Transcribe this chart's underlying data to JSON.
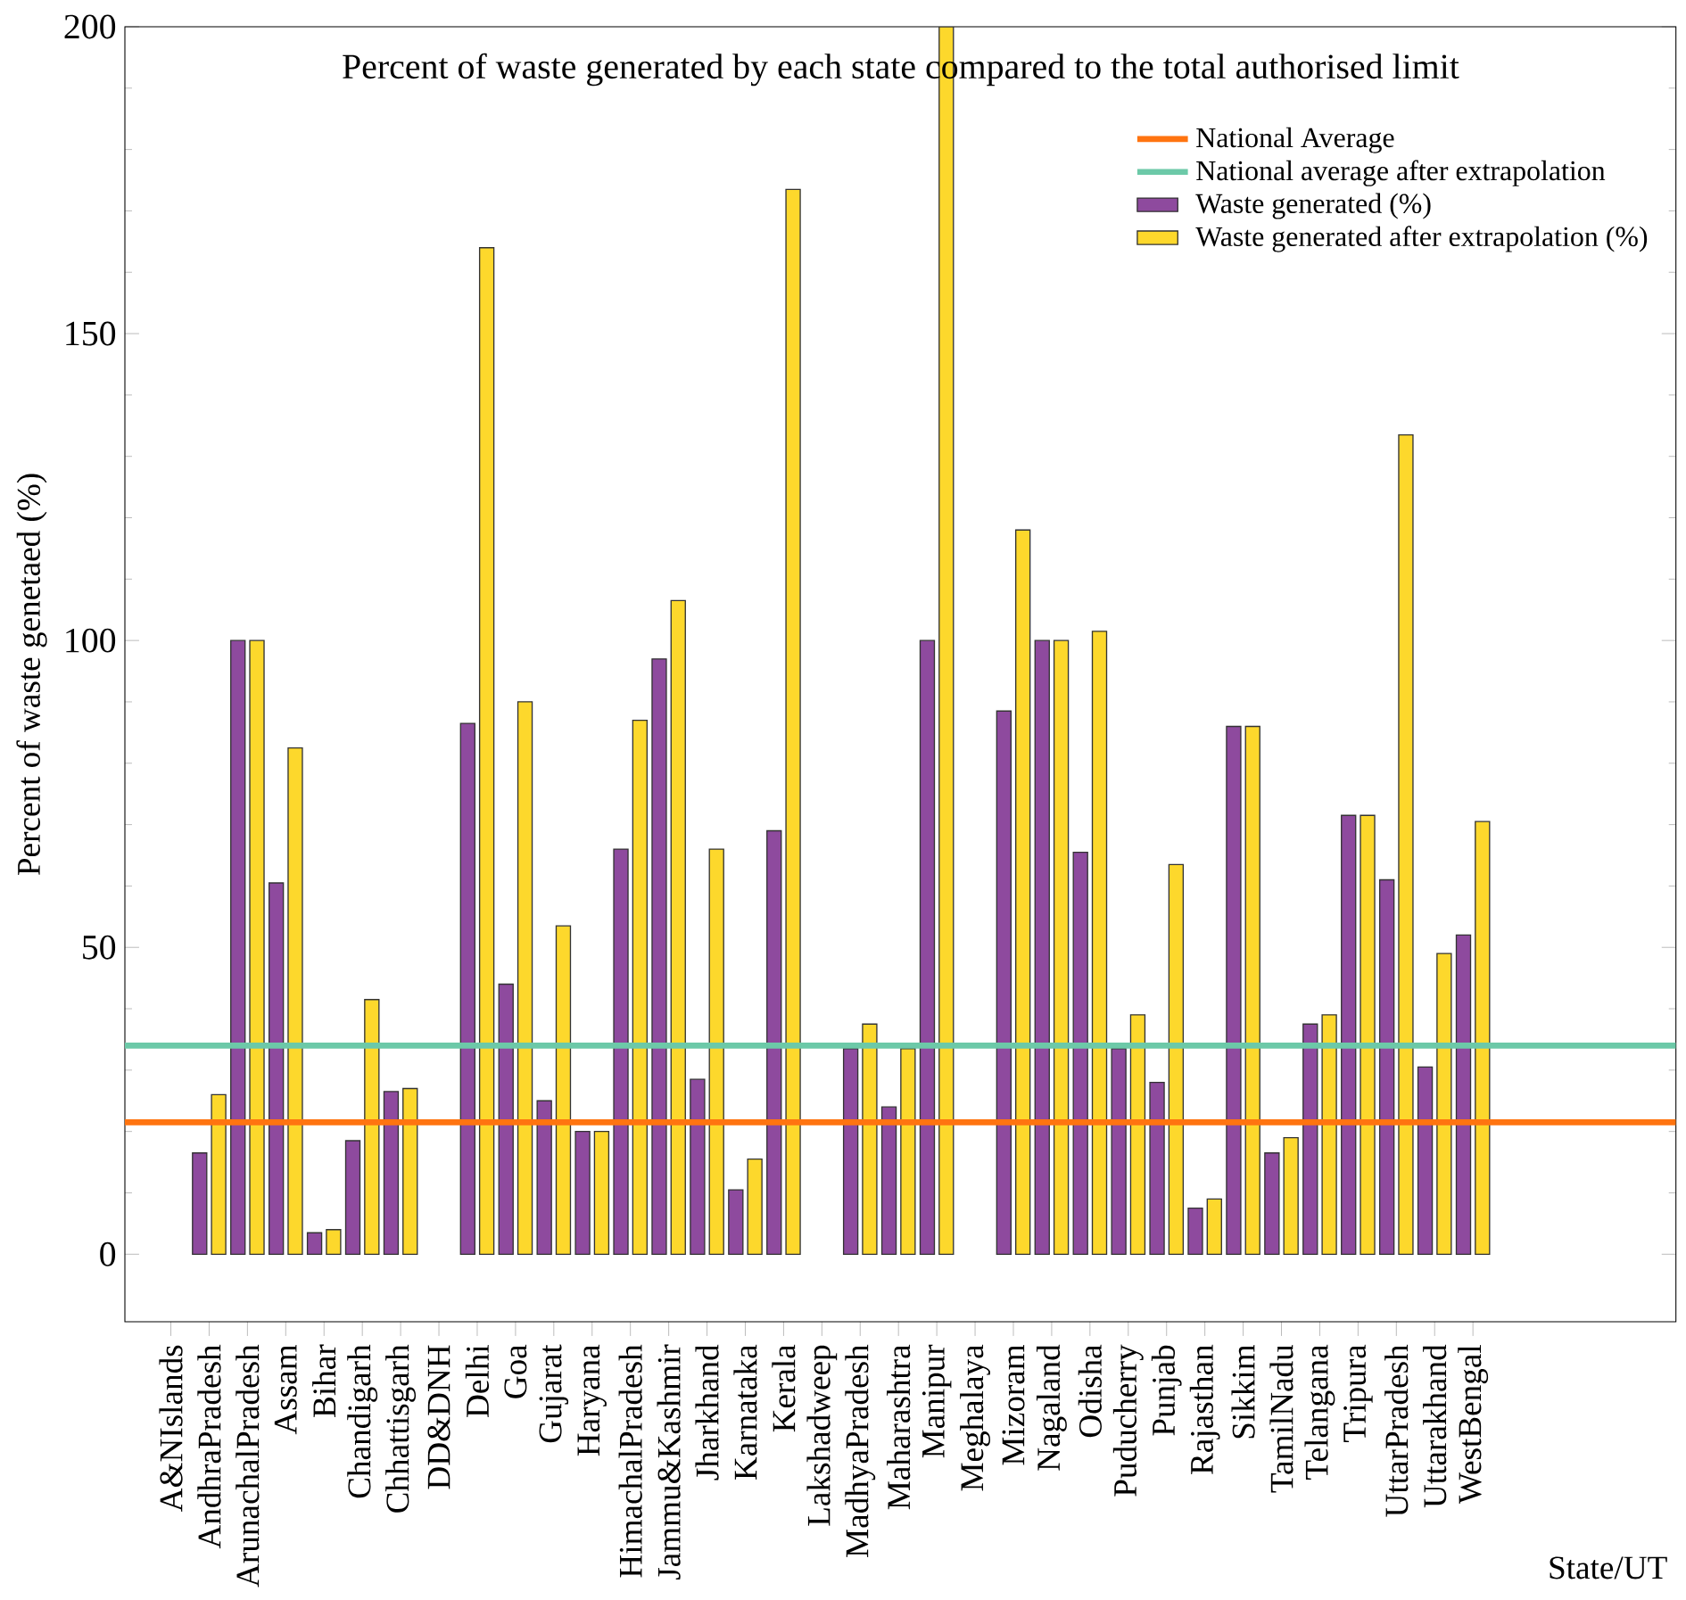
{
  "chart_data": {
    "type": "bar",
    "title": "Percent of waste generated by each state compared to the total authorised limit",
    "xlabel": "State/UT",
    "ylabel": "Percent of waste genetaed (%)",
    "categories": [
      "A&NIslands",
      "AndhraPradesh",
      "ArunachalPradesh",
      "Assam",
      "Bihar",
      "Chandigarh",
      "Chhattisgarh",
      "DD&DNH",
      "Delhi",
      "Goa",
      "Gujarat",
      "Haryana",
      "HimachalPradesh",
      "Jammu&Kashmir",
      "Jharkhand",
      "Karnataka",
      "Kerala",
      "Lakshadweep",
      "MadhyaPradesh",
      "Maharashtra",
      "Manipur",
      "Meghalaya",
      "Mizoram",
      "Nagaland",
      "Odisha",
      "Puducherry",
      "Punjab",
      "Rajasthan",
      "Sikkim",
      "TamilNadu",
      "Telangana",
      "Tripura",
      "UttarPradesh",
      "Uttarakhand",
      "WestBengal"
    ],
    "series": [
      {
        "name": "Waste generated (%)",
        "color": "#8e4a9e",
        "values": [
          0,
          16.5,
          100,
          60.5,
          3.5,
          18.5,
          26.5,
          0,
          86.5,
          44,
          25,
          20,
          66,
          97,
          28.5,
          10.5,
          69,
          0,
          33.5,
          24,
          100,
          0,
          88.5,
          100,
          65.5,
          33.5,
          28,
          7.5,
          86,
          16.5,
          37.5,
          71.5,
          61,
          30.5,
          52
        ]
      },
      {
        "name": "Waste generated after extrapolation (%)",
        "color": "#fdd82c",
        "values": [
          0,
          26,
          100,
          82.5,
          4,
          41.5,
          27,
          0,
          164,
          90,
          53.5,
          20,
          87,
          106.5,
          66,
          15.5,
          173.5,
          0,
          37.5,
          33.5,
          200,
          0,
          118,
          100,
          101.5,
          39,
          63.5,
          9,
          86,
          19,
          39,
          71.5,
          133.5,
          49,
          70.5
        ]
      }
    ],
    "ref_lines": [
      {
        "axis": "y",
        "value": 21.5,
        "label": "National Average",
        "color": "#ff7410"
      },
      {
        "axis": "y",
        "value": 34,
        "label": "National average after extrapolation",
        "color": "#6cc9a8"
      }
    ],
    "ylim": [
      -11,
      200
    ],
    "yticks": [
      0,
      50,
      100,
      150,
      200
    ],
    "legend": "top right"
  }
}
